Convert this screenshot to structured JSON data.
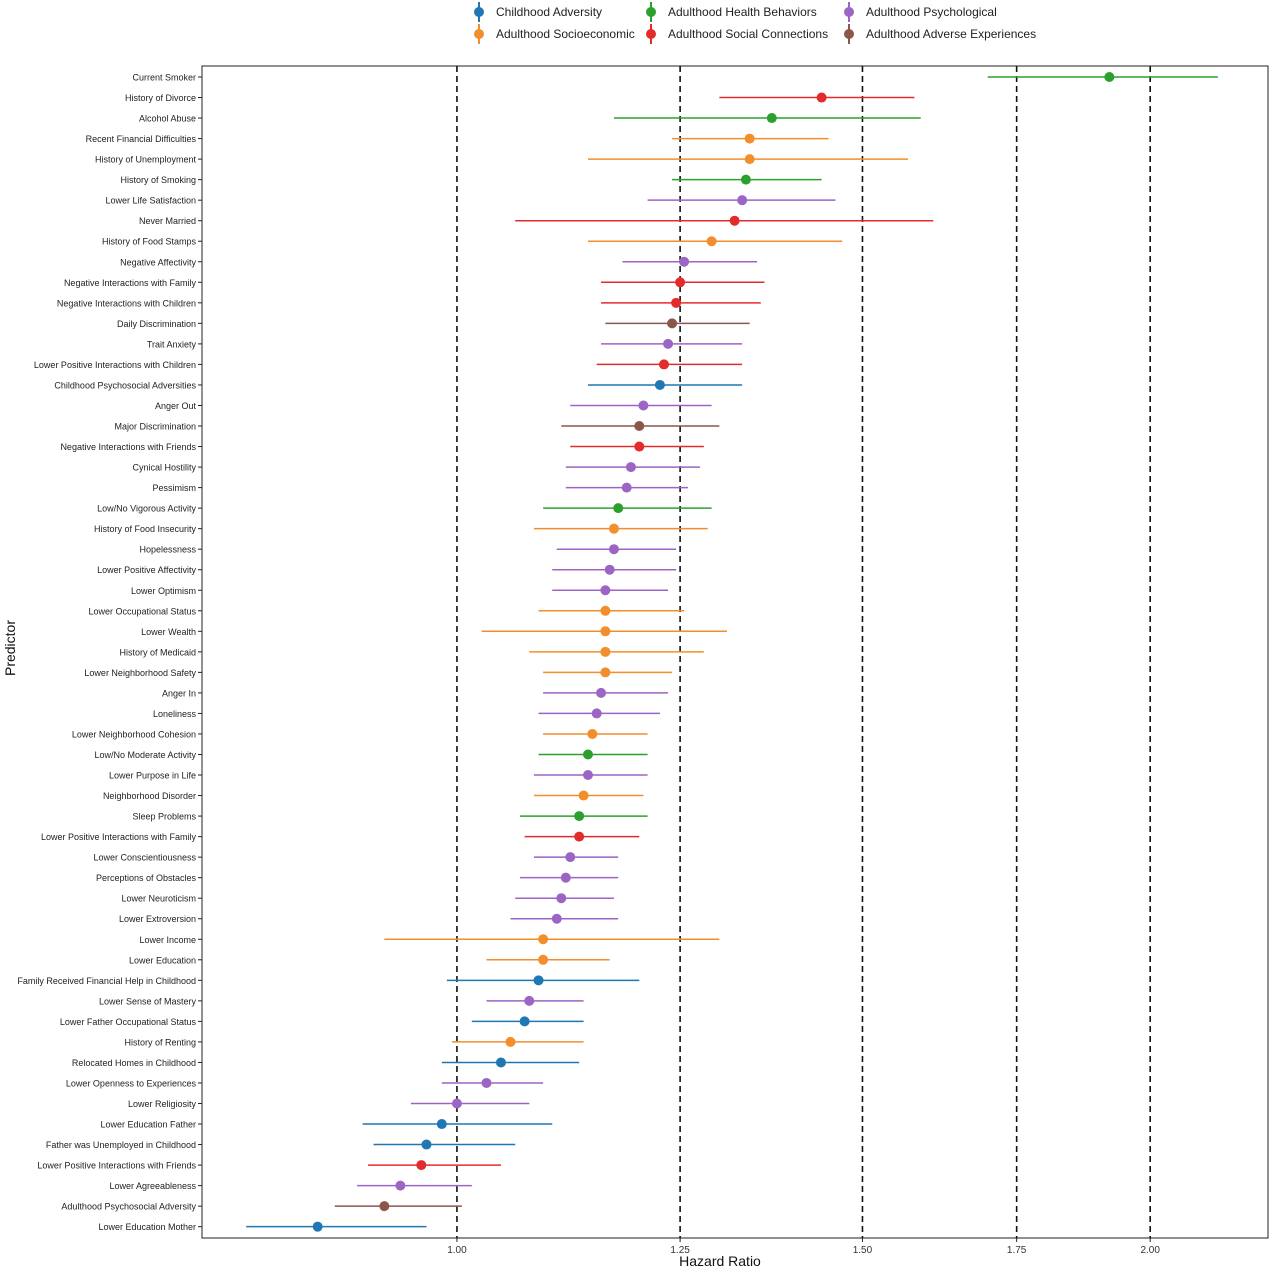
{
  "chart_data": {
    "type": "forest",
    "xlabel": "Hazard Ratio",
    "ylabel": "Predictor",
    "xlim": [
      0.775,
      2.25
    ],
    "xticks": [
      1.0,
      1.25,
      1.5,
      1.75,
      2.0
    ],
    "xtick_labels": [
      "1.00",
      "1.25",
      "1.50",
      "1.75",
      "2.00"
    ],
    "reference_lines": [
      1.0,
      1.25,
      1.5,
      1.75,
      2.0
    ],
    "scale": "log",
    "grid": false,
    "legend_position": "top",
    "legend": [
      {
        "name": "Childhood Adversity",
        "color": "#1f77b4"
      },
      {
        "name": "Adulthood Socioeconomic",
        "color": "#f28e2b"
      },
      {
        "name": "Adulthood Health Behaviors",
        "color": "#2ca02c"
      },
      {
        "name": "Adulthood Social Connections",
        "color": "#e32b2b"
      },
      {
        "name": "Adulthood Psychological",
        "color": "#9c64c4"
      },
      {
        "name": "Adulthood Adverse Experiences",
        "color": "#8c564b"
      }
    ],
    "rows": [
      {
        "label": "Current Smoker",
        "category": 2,
        "hr": 1.92,
        "lo": 1.7,
        "hi": 2.14
      },
      {
        "label": "History of Divorce",
        "category": 3,
        "hr": 1.44,
        "lo": 1.3,
        "hi": 1.58
      },
      {
        "label": "Alcohol Abuse",
        "category": 2,
        "hr": 1.37,
        "lo": 1.17,
        "hi": 1.59
      },
      {
        "label": "Recent Financial Difficulties",
        "category": 1,
        "hr": 1.34,
        "lo": 1.24,
        "hi": 1.45
      },
      {
        "label": "History of Unemployment",
        "category": 1,
        "hr": 1.34,
        "lo": 1.14,
        "hi": 1.57
      },
      {
        "label": "History of Smoking",
        "category": 2,
        "hr": 1.335,
        "lo": 1.24,
        "hi": 1.44
      },
      {
        "label": "Lower Life Satisfaction",
        "category": 4,
        "hr": 1.33,
        "lo": 1.21,
        "hi": 1.46
      },
      {
        "label": "Never Married",
        "category": 3,
        "hr": 1.32,
        "lo": 1.06,
        "hi": 1.61
      },
      {
        "label": "History of Food Stamps",
        "category": 1,
        "hr": 1.29,
        "lo": 1.14,
        "hi": 1.47
      },
      {
        "label": "Negative Affectivity",
        "category": 4,
        "hr": 1.255,
        "lo": 1.18,
        "hi": 1.35
      },
      {
        "label": "Negative Interactions with Family",
        "category": 3,
        "hr": 1.25,
        "lo": 1.155,
        "hi": 1.36
      },
      {
        "label": "Negative Interactions with Children",
        "category": 3,
        "hr": 1.245,
        "lo": 1.155,
        "hi": 1.355
      },
      {
        "label": "Daily Discrimination",
        "category": 5,
        "hr": 1.24,
        "lo": 1.16,
        "hi": 1.34
      },
      {
        "label": "Trait Anxiety",
        "category": 4,
        "hr": 1.235,
        "lo": 1.155,
        "hi": 1.33
      },
      {
        "label": "Lower Positive Interactions with Children",
        "category": 3,
        "hr": 1.23,
        "lo": 1.15,
        "hi": 1.33
      },
      {
        "label": "Childhood Psychosocial Adversities",
        "category": 0,
        "hr": 1.225,
        "lo": 1.14,
        "hi": 1.33
      },
      {
        "label": "Anger Out",
        "category": 4,
        "hr": 1.205,
        "lo": 1.12,
        "hi": 1.29
      },
      {
        "label": "Major Discrimination",
        "category": 5,
        "hr": 1.2,
        "lo": 1.11,
        "hi": 1.3
      },
      {
        "label": "Negative Interactions with Friends",
        "category": 3,
        "hr": 1.2,
        "lo": 1.12,
        "hi": 1.28
      },
      {
        "label": "Cynical Hostility",
        "category": 4,
        "hr": 1.19,
        "lo": 1.115,
        "hi": 1.275
      },
      {
        "label": "Pessimism",
        "category": 4,
        "hr": 1.185,
        "lo": 1.115,
        "hi": 1.26
      },
      {
        "label": "Low/No Vigorous Activity",
        "category": 2,
        "hr": 1.175,
        "lo": 1.09,
        "hi": 1.29
      },
      {
        "label": "History of Food Insecurity",
        "category": 1,
        "hr": 1.17,
        "lo": 1.08,
        "hi": 1.285
      },
      {
        "label": "Hopelessness",
        "category": 4,
        "hr": 1.17,
        "lo": 1.105,
        "hi": 1.245
      },
      {
        "label": "Lower Positive Affectivity",
        "category": 4,
        "hr": 1.165,
        "lo": 1.1,
        "hi": 1.245
      },
      {
        "label": "Lower Optimism",
        "category": 4,
        "hr": 1.16,
        "lo": 1.1,
        "hi": 1.235
      },
      {
        "label": "Lower Occupational Status",
        "category": 1,
        "hr": 1.16,
        "lo": 1.085,
        "hi": 1.255
      },
      {
        "label": "Lower Wealth",
        "category": 1,
        "hr": 1.16,
        "lo": 1.025,
        "hi": 1.31
      },
      {
        "label": "History of Medicaid",
        "category": 1,
        "hr": 1.16,
        "lo": 1.075,
        "hi": 1.28
      },
      {
        "label": "Lower Neighborhood Safety",
        "category": 1,
        "hr": 1.16,
        "lo": 1.09,
        "hi": 1.24
      },
      {
        "label": "Anger In",
        "category": 4,
        "hr": 1.155,
        "lo": 1.09,
        "hi": 1.235
      },
      {
        "label": "Loneliness",
        "category": 4,
        "hr": 1.15,
        "lo": 1.085,
        "hi": 1.225
      },
      {
        "label": "Lower Neighborhood Cohesion",
        "category": 1,
        "hr": 1.145,
        "lo": 1.09,
        "hi": 1.21
      },
      {
        "label": "Low/No Moderate Activity",
        "category": 2,
        "hr": 1.14,
        "lo": 1.085,
        "hi": 1.21
      },
      {
        "label": "Lower Purpose in Life",
        "category": 4,
        "hr": 1.14,
        "lo": 1.08,
        "hi": 1.21
      },
      {
        "label": "Neighborhood Disorder",
        "category": 1,
        "hr": 1.135,
        "lo": 1.08,
        "hi": 1.205
      },
      {
        "label": "Sleep Problems",
        "category": 2,
        "hr": 1.13,
        "lo": 1.065,
        "hi": 1.21
      },
      {
        "label": "Lower Positive Interactions with Family",
        "category": 3,
        "hr": 1.13,
        "lo": 1.07,
        "hi": 1.2
      },
      {
        "label": "Lower Conscientiousness",
        "category": 4,
        "hr": 1.12,
        "lo": 1.08,
        "hi": 1.175
      },
      {
        "label": "Perceptions of Obstacles",
        "category": 4,
        "hr": 1.115,
        "lo": 1.065,
        "hi": 1.175
      },
      {
        "label": "Lower Neuroticism",
        "category": 4,
        "hr": 1.11,
        "lo": 1.06,
        "hi": 1.17
      },
      {
        "label": "Lower Extroversion",
        "category": 4,
        "hr": 1.105,
        "lo": 1.055,
        "hi": 1.175
      },
      {
        "label": "Lower Income",
        "category": 1,
        "hr": 1.09,
        "lo": 0.93,
        "hi": 1.3
      },
      {
        "label": "Lower Education",
        "category": 1,
        "hr": 1.09,
        "lo": 1.03,
        "hi": 1.165
      },
      {
        "label": "Family Received Financial Help in Childhood",
        "category": 0,
        "hr": 1.085,
        "lo": 0.99,
        "hi": 1.2
      },
      {
        "label": "Lower Sense of Mastery",
        "category": 4,
        "hr": 1.075,
        "lo": 1.03,
        "hi": 1.135
      },
      {
        "label": "Lower Father Occupational Status",
        "category": 0,
        "hr": 1.07,
        "lo": 1.015,
        "hi": 1.135
      },
      {
        "label": "History of Renting",
        "category": 1,
        "hr": 1.055,
        "lo": 0.995,
        "hi": 1.135
      },
      {
        "label": "Relocated Homes in Childhood",
        "category": 0,
        "hr": 1.045,
        "lo": 0.985,
        "hi": 1.13
      },
      {
        "label": "Lower Openness to Experiences",
        "category": 4,
        "hr": 1.03,
        "lo": 0.985,
        "hi": 1.09
      },
      {
        "label": "Lower Religiosity",
        "category": 4,
        "hr": 1.0,
        "lo": 0.955,
        "hi": 1.075
      },
      {
        "label": "Lower Education Father",
        "category": 0,
        "hr": 0.985,
        "lo": 0.91,
        "hi": 1.1
      },
      {
        "label": "Father was Unemployed in Childhood",
        "category": 0,
        "hr": 0.97,
        "lo": 0.92,
        "hi": 1.06
      },
      {
        "label": "Lower Positive Interactions with Friends",
        "category": 3,
        "hr": 0.965,
        "lo": 0.915,
        "hi": 1.045
      },
      {
        "label": "Lower Agreeableness",
        "category": 4,
        "hr": 0.945,
        "lo": 0.905,
        "hi": 1.015
      },
      {
        "label": "Adulthood Psychosocial Adversity",
        "category": 5,
        "hr": 0.93,
        "lo": 0.885,
        "hi": 1.005
      },
      {
        "label": "Lower Education Mother",
        "category": 0,
        "hr": 0.87,
        "lo": 0.81,
        "hi": 0.97
      }
    ]
  }
}
